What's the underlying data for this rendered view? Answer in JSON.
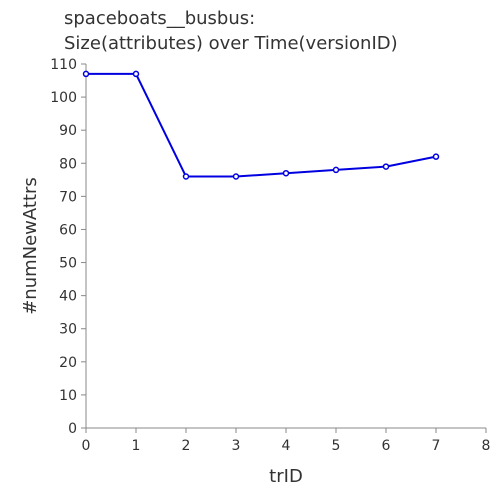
{
  "chart_data": {
    "type": "line",
    "title": "spaceboats__busbus:",
    "subtitle": "Size(attributes) over Time(versionID)",
    "xlabel": "trID",
    "ylabel": "#numNewAttrs",
    "xlim": [
      0,
      8
    ],
    "ylim": [
      0,
      110
    ],
    "xticks": [
      "0",
      "1",
      "2",
      "3",
      "4",
      "5",
      "6",
      "7",
      "8"
    ],
    "yticks": [
      "0",
      "10",
      "20",
      "30",
      "40",
      "50",
      "60",
      "70",
      "80",
      "90",
      "100",
      "110"
    ],
    "grid": false,
    "series": [
      {
        "color": "#0000e0",
        "x": [
          0,
          1,
          2,
          3,
          4,
          5,
          6,
          7
        ],
        "y": [
          107,
          107,
          76,
          76,
          77,
          78,
          79,
          82
        ]
      }
    ]
  }
}
